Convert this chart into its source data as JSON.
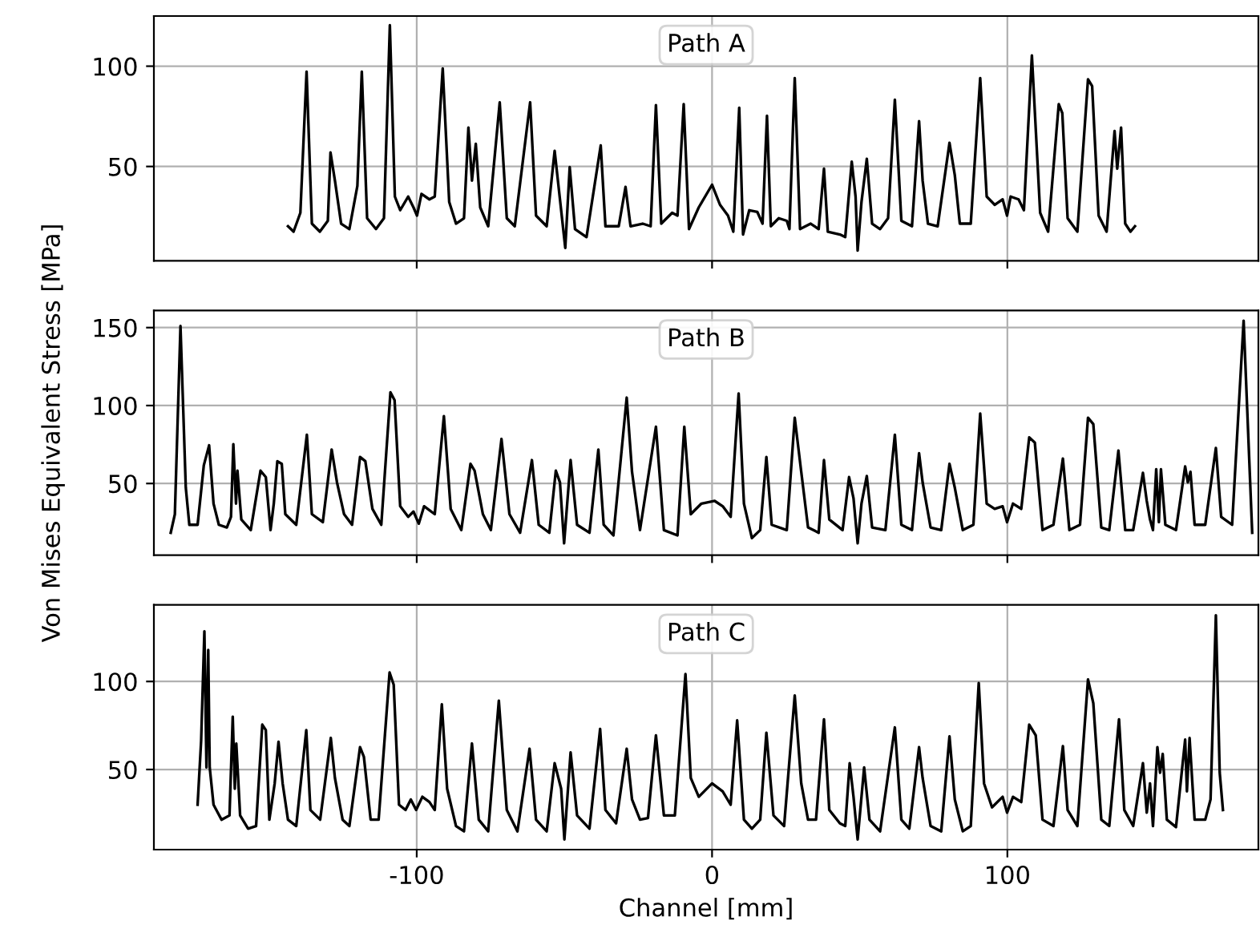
{
  "chart_data": [
    {
      "type": "line",
      "title": "Path A",
      "tick_labels": "y",
      "grid": true,
      "xlim": [
        -189,
        185
      ],
      "xticks": [
        -100,
        0,
        100
      ],
      "ylim": [
        3,
        125
      ],
      "yticks": [
        50,
        100
      ],
      "series": [
        {
          "color": "#000000",
          "x": [
            -143.6,
            -141.7,
            -139.4,
            -137.3,
            -135.5,
            -132.8,
            -130.1,
            -129.2,
            -127.7,
            -125.6,
            -122.8,
            -120.1,
            -118.6,
            -116.8,
            -113.8,
            -111.1,
            -109.1,
            -107.4,
            -105.6,
            -102.9,
            -101.1,
            -99.9,
            -98.4,
            -95.7,
            -93.9,
            -91.2,
            -89.0,
            -86.7,
            -84.0,
            -82.5,
            -81.3,
            -80.0,
            -78.5,
            -75.8,
            -71.9,
            -69.5,
            -66.8,
            -61.6,
            -59.6,
            -56.0,
            -53.3,
            -50.6,
            -49.7,
            -48.2,
            -46.4,
            -42.5,
            -37.7,
            -36.1,
            -31.6,
            -29.3,
            -27.6,
            -23.5,
            -20.8,
            -19.0,
            -17.2,
            -13.5,
            -11.7,
            -9.6,
            -7.8,
            -4.5,
            0,
            2.7,
            5.4,
            7.2,
            9.2,
            10.5,
            12.6,
            15.3,
            17.1,
            18.6,
            19.9,
            22.6,
            25.3,
            26.2,
            28.0,
            29.8,
            33.4,
            36.1,
            37.9,
            39.2,
            43.3,
            45.1,
            47.3,
            48.6,
            49.3,
            50.6,
            52.4,
            54.2,
            56.9,
            59.6,
            61.9,
            64.1,
            67.7,
            70.1,
            71.3,
            73.1,
            76.4,
            80.4,
            82.2,
            83.9,
            87.6,
            90.8,
            93.0,
            95.7,
            98.4,
            99.9,
            101.1,
            103.8,
            105.6,
            108.3,
            111.1,
            113.8,
            117.4,
            118.6,
            120.4,
            123.7,
            127.3,
            128.7,
            130.9,
            133.6,
            136.3,
            137.2,
            138.5,
            139.9,
            141.7,
            143.2
          ],
          "values": [
            20.2,
            17.5,
            26.9,
            97.3,
            21.5,
            17.5,
            22.9,
            57.0,
            43.0,
            21.5,
            18.8,
            40.3,
            97.3,
            24.2,
            18.8,
            24.2,
            120.4,
            35,
            28.2,
            35,
            29.6,
            25.5,
            36.3,
            33.6,
            35,
            98.9,
            32.3,
            21.5,
            24.2,
            69.4,
            43.0,
            61.3,
            29.6,
            20.2,
            82.0,
            24.2,
            20.2,
            82.0,
            25.5,
            20.2,
            57.8,
            21.5,
            9.4,
            49.7,
            18.8,
            14.8,
            60.5,
            20.2,
            20.2,
            39.8,
            20.2,
            21.5,
            20.2,
            80.6,
            21.5,
            26.9,
            25.5,
            81.1,
            18.8,
            29.6,
            40.9,
            30.9,
            25.5,
            17.5,
            79.3,
            16.1,
            28.2,
            27.4,
            21.5,
            75.3,
            20.2,
            24.2,
            22.9,
            18.8,
            94.1,
            18.8,
            21.5,
            18.8,
            48.9,
            17.5,
            16.1,
            14.8,
            52.4,
            35,
            8.1,
            32.3,
            53.8,
            21.5,
            18.8,
            24.2,
            83.3,
            22.9,
            20.2,
            72.6,
            43.0,
            21.5,
            20.2,
            61.8,
            45.7,
            21.5,
            21.5,
            94.1,
            35,
            30.9,
            33.6,
            25.5,
            35,
            33.6,
            28.2,
            105.4,
            26.9,
            17.5,
            81.1,
            76.6,
            24.2,
            17.5,
            93.5,
            90.1,
            25.5,
            17.5,
            67.7,
            48.9,
            69.4,
            21.5,
            17.5,
            20.2
          ]
        }
      ]
    },
    {
      "type": "line",
      "title": "Path B",
      "ylabel": "Von Mises Equivalent Stress [MPa]",
      "tick_labels": "y",
      "grid": true,
      "xlim": [
        -189,
        185
      ],
      "xticks": [
        -100,
        0,
        100
      ],
      "ylim": [
        4,
        161
      ],
      "yticks": [
        50,
        100,
        150
      ],
      "series": [
        {
          "color": "#000000",
          "x": [
            -183.3,
            -181.9,
            -180.0,
            -178.2,
            -177.0,
            -174.2,
            -172.1,
            -170.3,
            -168.8,
            -167.0,
            -164.3,
            -162.9,
            -162.1,
            -161.2,
            -160.7,
            -159.4,
            -156.2,
            -152.9,
            -151.1,
            -149.5,
            -148.4,
            -147.2,
            -145.7,
            -144.5,
            -140.8,
            -137.2,
            -135.5,
            -131.8,
            -128.8,
            -127.0,
            -124.6,
            -121.9,
            -119.2,
            -117.4,
            -115.0,
            -112.0,
            -108.9,
            -107.5,
            -105.6,
            -102.9,
            -101.1,
            -99.3,
            -97.5,
            -93.9,
            -90.8,
            -88.5,
            -84.9,
            -81.8,
            -80.4,
            -77.6,
            -74.9,
            -71.3,
            -68.6,
            -65.0,
            -61.0,
            -58.7,
            -55.1,
            -52.9,
            -51.5,
            -50.1,
            -47.9,
            -45.7,
            -41.5,
            -38.5,
            -36.7,
            -33.4,
            -28.9,
            -27.1,
            -24.4,
            -19.0,
            -16.3,
            -11.7,
            -9.4,
            -7.2,
            -3.6,
            0.9,
            3.6,
            6.3,
            9.0,
            10.8,
            13.5,
            16.3,
            18.4,
            20.2,
            25.3,
            28.0,
            30.2,
            32.5,
            36.1,
            37.9,
            39.7,
            44.2,
            46.4,
            47.9,
            49.3,
            50.6,
            52.4,
            54.2,
            58.7,
            61.9,
            64.1,
            67.7,
            70.1,
            71.3,
            74.0,
            77.6,
            80.4,
            82.2,
            84.9,
            88.5,
            90.8,
            93.0,
            95.7,
            98.4,
            99.9,
            101.9,
            104.7,
            107.4,
            109.3,
            111.9,
            115.6,
            118.8,
            121.0,
            124.6,
            127.3,
            129.1,
            131.8,
            134.5,
            137.6,
            139.9,
            142.6,
            145.9,
            147.2,
            148.3,
            149.3,
            150.4,
            151.3,
            152.0,
            153.5,
            157.1,
            160.2,
            161.1,
            162.0,
            163.4,
            167.0,
            170.6,
            172.4,
            176.1,
            180.0,
            182.9
          ],
          "values": [
            18.4,
            30.3,
            151,
            47.3,
            23.5,
            23.5,
            61.6,
            74.5,
            37.1,
            23.5,
            21.8,
            28.6,
            75.2,
            37.1,
            58.2,
            26.9,
            20.1,
            58.2,
            54.1,
            20.1,
            37.1,
            64.3,
            62.6,
            30.3,
            23.5,
            81.3,
            30.3,
            25.2,
            71.8,
            50.7,
            30.3,
            23.5,
            67.0,
            64.3,
            33.7,
            23.5,
            108.5,
            103.4,
            35.4,
            28.6,
            32.0,
            24.2,
            35.4,
            30.3,
            93.2,
            33.7,
            20.1,
            62.6,
            58.2,
            30.3,
            20.1,
            78.6,
            30.3,
            18.4,
            65.0,
            23.5,
            18.4,
            58.2,
            50.7,
            11.6,
            65.0,
            23.5,
            18.4,
            71.8,
            23.5,
            16.7,
            105.1,
            57.5,
            20.1,
            86.4,
            20.1,
            16.7,
            86.4,
            30.3,
            37.1,
            38.8,
            35.4,
            28.6,
            107.8,
            37.1,
            15.0,
            20.1,
            67.0,
            23.5,
            20.1,
            92.2,
            57.5,
            21.8,
            18.4,
            65.0,
            26.9,
            20.1,
            54.1,
            40.5,
            11.6,
            37.1,
            54.8,
            21.8,
            20.1,
            81.3,
            23.5,
            20.1,
            69.4,
            50.7,
            21.8,
            20.1,
            62.6,
            47.3,
            20.1,
            23.5,
            94.9,
            37.1,
            33.7,
            35.4,
            25.2,
            37.1,
            33.7,
            79.6,
            76.2,
            20.1,
            23.5,
            66.0,
            20.1,
            23.5,
            92.2,
            88.1,
            21.8,
            20.1,
            71.1,
            20.1,
            20.1,
            56.8,
            38.8,
            26.9,
            20.1,
            59.2,
            25.2,
            59.2,
            23.5,
            20.1,
            60.9,
            50.7,
            57.5,
            23.5,
            23.5,
            72.8,
            28.6,
            23.5,
            154.4,
            18.4
          ]
        }
      ]
    },
    {
      "type": "line",
      "title": "Path C",
      "xlabel": "Channel [mm]",
      "grid": true,
      "xlim": [
        -189,
        185
      ],
      "xticks": [
        -100,
        0,
        100
      ],
      "ylim": [
        4.5,
        143.5
      ],
      "yticks": [
        50,
        100
      ],
      "series": [
        {
          "color": "#000000",
          "x": [
            -174.2,
            -173.0,
            -171.9,
            -171.2,
            -170.6,
            -170.1,
            -168.8,
            -166.1,
            -163.4,
            -162.3,
            -161.6,
            -161.1,
            -159.8,
            -157.1,
            -154.4,
            -152.3,
            -151.1,
            -149.9,
            -148.1,
            -146.8,
            -145.4,
            -143.6,
            -140.8,
            -137.4,
            -136.0,
            -132.7,
            -129.1,
            -127.7,
            -125.1,
            -122.8,
            -119.2,
            -117.9,
            -115.6,
            -112.9,
            -109.2,
            -107.8,
            -106.0,
            -103.8,
            -102.0,
            -100.2,
            -98.1,
            -95.7,
            -93.9,
            -91.5,
            -89.7,
            -86.7,
            -84.0,
            -81.3,
            -79.0,
            -75.8,
            -72.2,
            -69.5,
            -65.9,
            -61.8,
            -59.6,
            -56.0,
            -53.3,
            -51.1,
            -50.0,
            -47.9,
            -45.7,
            -41.5,
            -37.9,
            -36.1,
            -32.5,
            -28.9,
            -27.1,
            -24.4,
            -21.7,
            -19.0,
            -16.3,
            -12.6,
            -9.0,
            -7.2,
            -4.5,
            0,
            3.6,
            6.3,
            8.5,
            10.8,
            13.5,
            16.3,
            18.4,
            20.8,
            24.4,
            28.0,
            30.2,
            32.5,
            35.2,
            37.9,
            39.7,
            43.3,
            45.1,
            46.6,
            47.9,
            49.3,
            51.5,
            53.3,
            56.9,
            61.9,
            64.1,
            66.8,
            70.1,
            71.3,
            74.0,
            77.6,
            80.4,
            82.2,
            84.9,
            87.6,
            90.3,
            92.1,
            94.8,
            98.4,
            99.9,
            101.9,
            104.7,
            107.4,
            109.6,
            111.9,
            115.6,
            118.8,
            120.4,
            123.7,
            127.3,
            129.1,
            131.8,
            134.5,
            137.8,
            139.6,
            142.6,
            145.9,
            147.2,
            148.3,
            149.3,
            150.8,
            151.7,
            152.6,
            154.0,
            157.1,
            160.2,
            160.8,
            161.7,
            163.4,
            167.0,
            168.8,
            170.6,
            171.9,
            173.0
          ],
          "values": [
            30.0,
            66.4,
            128.5,
            51.2,
            117.9,
            51.2,
            30.0,
            21.5,
            23.9,
            80.0,
            39.1,
            64.8,
            23.9,
            16.4,
            17.9,
            75.5,
            72.4,
            21.5,
            42.1,
            65.8,
            42.1,
            21.5,
            17.9,
            72.4,
            27.0,
            21.5,
            67.9,
            45.2,
            21.5,
            17.9,
            62.7,
            57.3,
            21.5,
            21.5,
            105.1,
            98.2,
            30.0,
            27.0,
            33.0,
            27.0,
            34.5,
            31.5,
            27.0,
            87.0,
            39.1,
            17.9,
            14.9,
            64.8,
            21.5,
            14.9,
            89.1,
            27.0,
            14.9,
            61.8,
            21.5,
            14.9,
            53.6,
            39.1,
            10.3,
            59.7,
            23.9,
            16.4,
            73.0,
            27.0,
            19.4,
            61.8,
            33.0,
            21.5,
            22.4,
            69.4,
            23.9,
            23.9,
            104.2,
            45.2,
            34.5,
            42.1,
            37.6,
            30.0,
            77.9,
            21.5,
            16.4,
            21.5,
            70.9,
            23.9,
            17.9,
            92.1,
            42.1,
            21.5,
            21.5,
            78.5,
            27.0,
            19.4,
            17.9,
            53.6,
            34.5,
            10.3,
            51.2,
            21.5,
            14.9,
            73.9,
            21.5,
            16.4,
            62.7,
            45.2,
            17.9,
            14.9,
            68.8,
            33.0,
            14.9,
            17.9,
            99.1,
            42.1,
            28.5,
            34.5,
            25.5,
            34.5,
            31.5,
            75.5,
            69.4,
            21.5,
            17.9,
            63.3,
            27.0,
            17.9,
            101.2,
            87.6,
            21.5,
            17.9,
            78.5,
            27.0,
            17.9,
            53.6,
            25.5,
            42.1,
            17.9,
            62.7,
            48.2,
            58.8,
            21.5,
            17.3,
            67.0,
            37.6,
            67.9,
            21.5,
            21.5,
            33.0,
            137.6,
            48.2,
            27.0
          ]
        }
      ]
    }
  ]
}
